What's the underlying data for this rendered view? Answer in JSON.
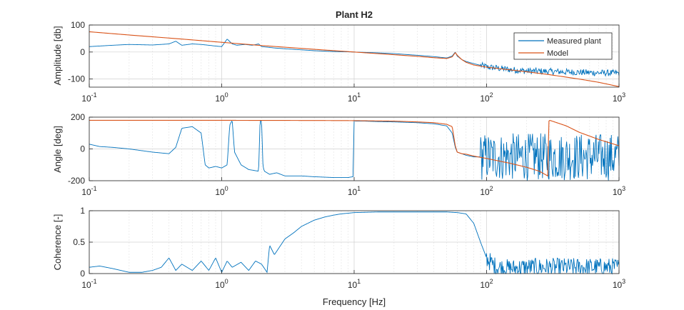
{
  "chart_data": [
    {
      "type": "line",
      "title": "Plant H2",
      "xlabel": "",
      "ylabel": "Amplitude [db]",
      "xscale": "log",
      "xlim": [
        0.1,
        1000
      ],
      "ylim": [
        -130,
        100
      ],
      "yticks": [
        -100,
        0,
        100
      ],
      "ytick_labels": [
        "-100",
        "0",
        "100"
      ],
      "grid": true,
      "legend": "top-right",
      "series": [
        {
          "name": "Measured plant",
          "color": "#0072BD",
          "x": [
            0.1,
            0.15,
            0.2,
            0.3,
            0.4,
            0.45,
            0.5,
            0.6,
            0.7,
            0.8,
            0.9,
            1.0,
            1.1,
            1.2,
            1.3,
            1.5,
            1.7,
            1.9,
            2.0,
            2.2,
            2.5,
            3,
            4,
            5,
            7,
            10,
            15,
            20,
            30,
            40,
            50,
            55,
            58,
            60,
            65,
            70,
            80,
            100,
            150,
            200,
            300,
            500,
            700,
            1000
          ],
          "y": [
            20,
            25,
            28,
            26,
            30,
            40,
            25,
            30,
            28,
            25,
            22,
            20,
            48,
            30,
            25,
            28,
            25,
            30,
            20,
            18,
            15,
            12,
            8,
            5,
            2,
            0,
            -3,
            -6,
            -12,
            -17,
            -22,
            -15,
            0,
            -15,
            -28,
            -35,
            -43,
            -55,
            -65,
            -70,
            -72,
            -75,
            -77,
            -78
          ],
          "noise": 12,
          "noise_from": 90
        },
        {
          "name": "Model",
          "color": "#D95319",
          "x": [
            0.1,
            0.2,
            0.5,
            1.0,
            2.0,
            5,
            10,
            20,
            30,
            40,
            50,
            55,
            58,
            60,
            65,
            70,
            80,
            100,
            150,
            200,
            300,
            500,
            700,
            1000
          ],
          "y": [
            75,
            63,
            48,
            36,
            24,
            10,
            0,
            -10,
            -16,
            -21,
            -24,
            -18,
            -2,
            -12,
            -28,
            -38,
            -48,
            -56,
            -66,
            -73,
            -84,
            -100,
            -112,
            -128
          ]
        }
      ]
    },
    {
      "type": "line",
      "title": "",
      "xlabel": "",
      "ylabel": "Angle [deg]",
      "xscale": "log",
      "xlim": [
        0.1,
        1000
      ],
      "ylim": [
        -200,
        200
      ],
      "yticks": [
        -200,
        0,
        200
      ],
      "ytick_labels": [
        "-200",
        "0",
        "200"
      ],
      "grid": true,
      "series": [
        {
          "name": "Measured plant",
          "color": "#0072BD",
          "x": [
            0.1,
            0.12,
            0.15,
            0.2,
            0.3,
            0.4,
            0.45,
            0.5,
            0.6,
            0.7,
            0.75,
            0.8,
            0.9,
            1.0,
            1.1,
            1.15,
            1.2,
            1.25,
            1.4,
            1.6,
            1.9,
            1.95,
            2.0,
            2.05,
            2.1,
            2.3,
            2.6,
            3,
            4,
            5,
            7,
            9,
            9.8,
            10,
            10.2,
            11,
            12,
            15,
            20,
            30,
            40,
            50,
            55,
            58,
            60,
            65,
            70,
            80,
            90
          ],
          "y": [
            30,
            15,
            10,
            0,
            -20,
            -30,
            10,
            130,
            140,
            100,
            -100,
            -120,
            -110,
            -120,
            -100,
            150,
            180,
            -20,
            -100,
            -130,
            -140,
            180,
            175,
            -110,
            -140,
            -160,
            -150,
            -170,
            -170,
            -175,
            -180,
            -180,
            -175,
            180,
            175,
            175,
            175,
            172,
            170,
            165,
            158,
            145,
            100,
            10,
            -20,
            -30,
            -40,
            -50,
            -50
          ],
          "noise": 150,
          "noise_from": 90
        },
        {
          "name": "Model",
          "color": "#D95319",
          "x": [
            0.1,
            1,
            5,
            10,
            20,
            30,
            40,
            50,
            55,
            58,
            60,
            65,
            70,
            80,
            100,
            150,
            200,
            250,
            290,
            295,
            300,
            400,
            500,
            700,
            1000
          ],
          "y": [
            180,
            180,
            179,
            178,
            175,
            170,
            165,
            155,
            140,
            20,
            -20,
            -30,
            -33,
            -45,
            -60,
            -90,
            -115,
            -140,
            -170,
            175,
            180,
            145,
            105,
            60,
            20
          ]
        }
      ]
    },
    {
      "type": "line",
      "title": "",
      "xlabel": "Frequency [Hz]",
      "ylabel": "Coherence [-]",
      "xscale": "log",
      "xlim": [
        0.1,
        1000
      ],
      "ylim": [
        0,
        1
      ],
      "yticks": [
        0,
        0.5,
        1
      ],
      "ytick_labels": [
        "0",
        "0.5",
        "1"
      ],
      "grid": true,
      "series": [
        {
          "name": "Measured plant",
          "color": "#0072BD",
          "x": [
            0.1,
            0.12,
            0.15,
            0.2,
            0.25,
            0.3,
            0.35,
            0.4,
            0.45,
            0.5,
            0.6,
            0.7,
            0.8,
            0.9,
            1.0,
            1.1,
            1.2,
            1.4,
            1.6,
            1.8,
            2.0,
            2.2,
            2.3,
            2.5,
            3,
            3.5,
            4,
            5,
            6,
            7,
            8,
            10,
            15,
            20,
            30,
            40,
            50,
            60,
            70,
            80,
            90,
            100,
            110,
            120,
            150,
            200,
            300,
            500,
            700,
            1000
          ],
          "y": [
            0.1,
            0.12,
            0.08,
            0.02,
            0.02,
            0.05,
            0.1,
            0.25,
            0.05,
            0.15,
            0.05,
            0.2,
            0.05,
            0.25,
            0.02,
            0.2,
            0.1,
            0.18,
            0.05,
            0.2,
            0.15,
            0.02,
            0.45,
            0.3,
            0.55,
            0.65,
            0.75,
            0.85,
            0.9,
            0.93,
            0.95,
            0.97,
            0.98,
            0.98,
            0.98,
            0.98,
            0.98,
            0.97,
            0.95,
            0.8,
            0.5,
            0.25,
            0.15,
            0.1,
            0.08,
            0.1,
            0.1,
            0.1,
            0.1,
            0.1
          ],
          "noise": 0.15,
          "noise_from": 100
        }
      ]
    }
  ]
}
